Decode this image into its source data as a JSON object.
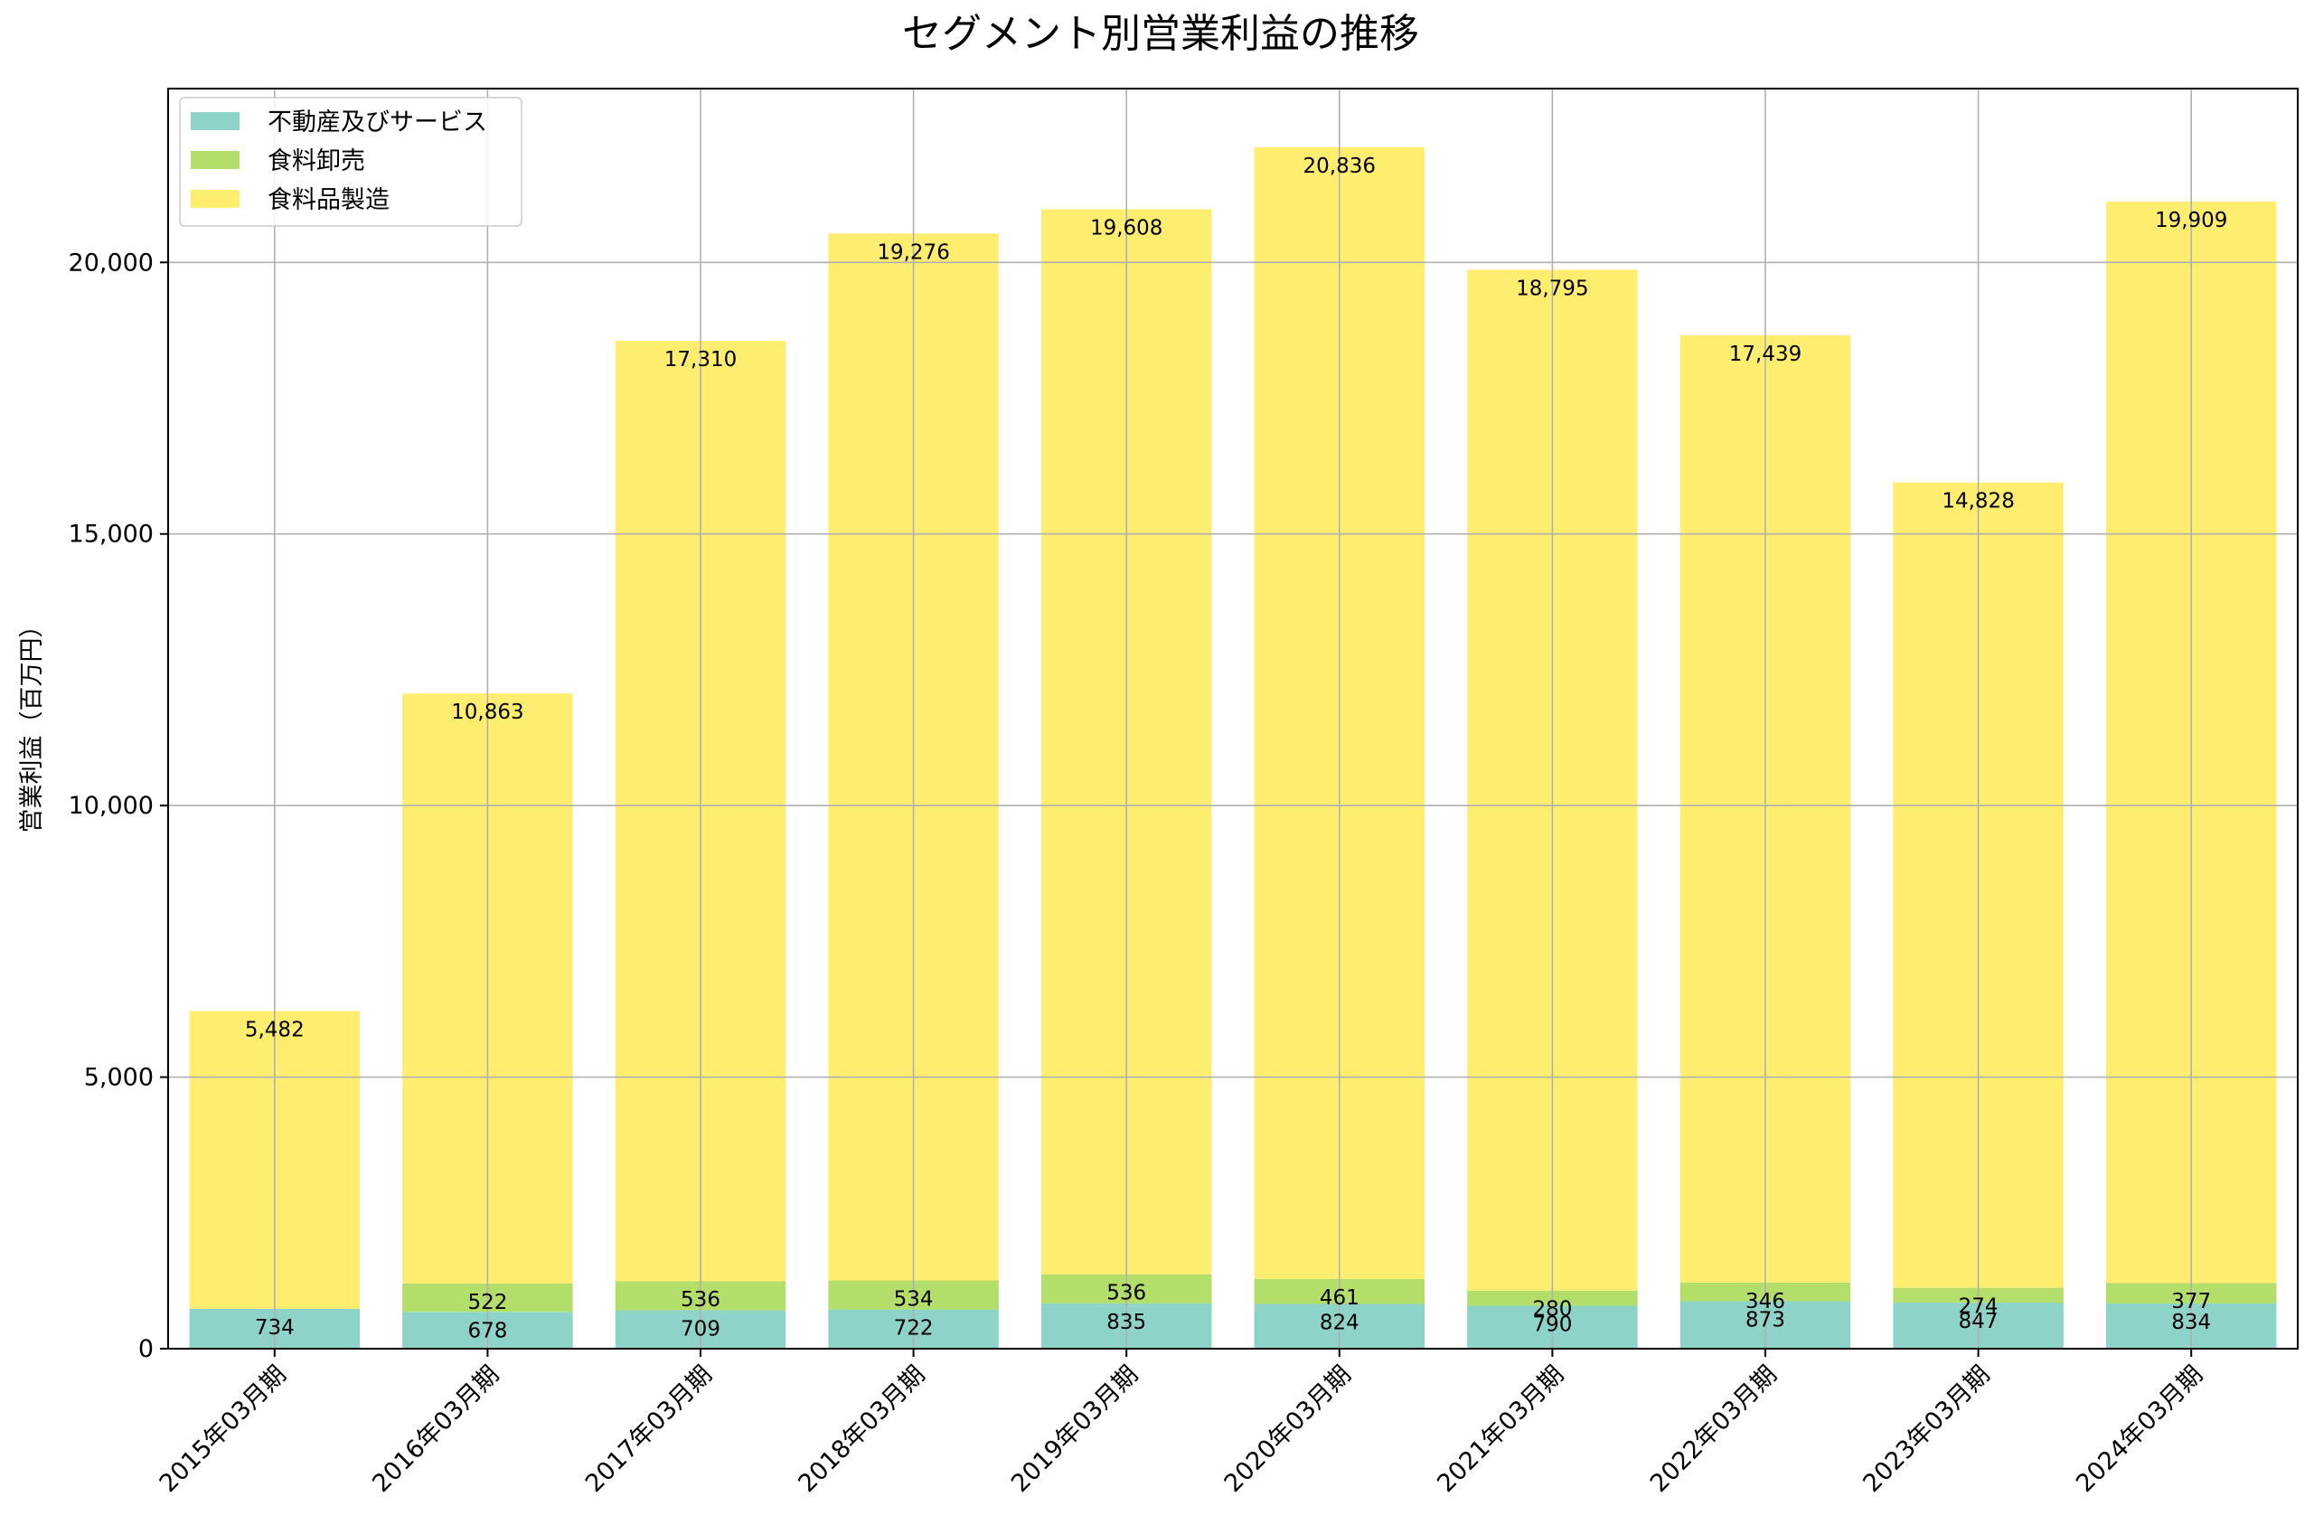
{
  "chart_data": {
    "type": "bar",
    "stacked": true,
    "title": "セグメント別営業利益の推移",
    "xlabel": "",
    "ylabel": "営業利益（百万円）",
    "ylim": [
      0,
      23200
    ],
    "yticks": [
      0,
      5000,
      10000,
      15000,
      20000
    ],
    "ytick_labels": [
      "0",
      "5,000",
      "10,000",
      "15,000",
      "20,000"
    ],
    "grid": true,
    "legend_position": "top-left",
    "categories": [
      "2015年03月期",
      "2016年03月期",
      "2017年03月期",
      "2018年03月期",
      "2019年03月期",
      "2020年03月期",
      "2021年03月期",
      "2022年03月期",
      "2023年03月期",
      "2024年03月期"
    ],
    "series": [
      {
        "name": "不動産及びサービス",
        "color": "#8dd3c7",
        "values": [
          734,
          678,
          709,
          722,
          835,
          824,
          790,
          873,
          847,
          834
        ],
        "labels": [
          "734",
          "678",
          "709",
          "722",
          "835",
          "824",
          "790",
          "873",
          "847",
          "834"
        ]
      },
      {
        "name": "食料卸売",
        "color": "#b3de69",
        "values": [
          0,
          522,
          536,
          534,
          536,
          461,
          280,
          346,
          274,
          377
        ],
        "labels": [
          "",
          "522",
          "536",
          "534",
          "536",
          "461",
          "280",
          "346",
          "274",
          "377"
        ]
      },
      {
        "name": "食料品製造",
        "color": "#ffed6f",
        "values": [
          5482,
          10863,
          17310,
          19276,
          19608,
          20836,
          18795,
          17439,
          14828,
          19909
        ],
        "labels": [
          "5,482",
          "10,863",
          "17,310",
          "19,276",
          "19,608",
          "20,836",
          "18,795",
          "17,439",
          "14,828",
          "19,909"
        ]
      }
    ]
  }
}
